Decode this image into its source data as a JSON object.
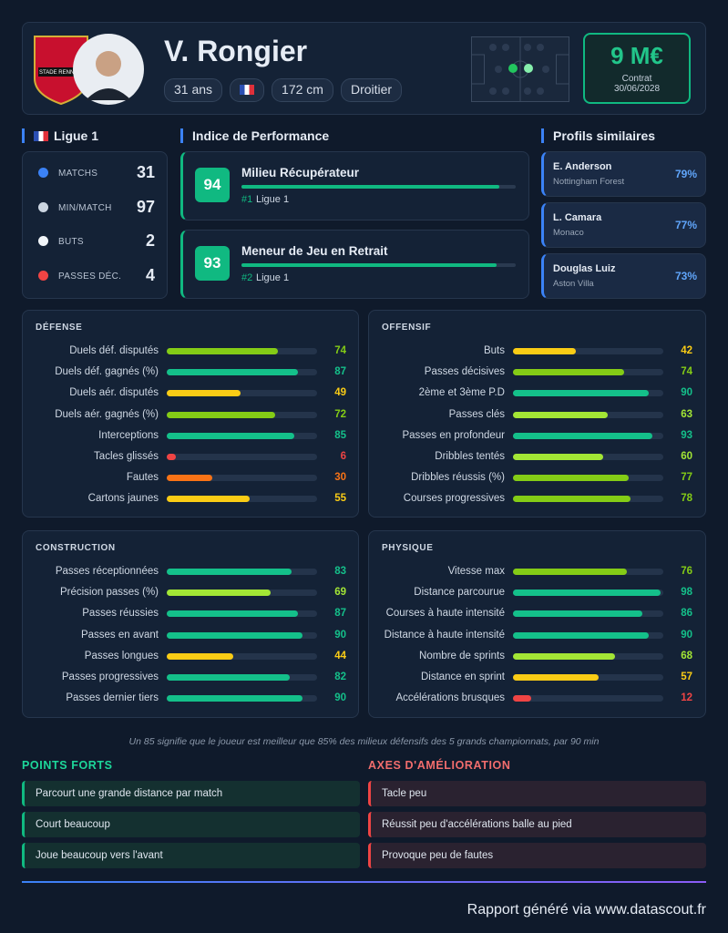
{
  "header": {
    "club": "STADE RENNAIS",
    "name": "V. Rongier",
    "tags": [
      "31 ans",
      "172 cm",
      "Droitier"
    ],
    "value": "9 M€",
    "contract_label": "Contrat",
    "contract_date": "30/06/2028"
  },
  "league": {
    "title": "Ligue 1",
    "stats": [
      {
        "label": "MATCHS",
        "value": 31
      },
      {
        "label": "MIN/MATCH",
        "value": 97
      },
      {
        "label": "BUTS",
        "value": 2
      },
      {
        "label": "PASSES DÉC.",
        "value": 4
      }
    ]
  },
  "performance": {
    "title": "Indice de Performance",
    "items": [
      {
        "score": 94,
        "role": "Milieu Récupérateur",
        "rank": "#1",
        "league": "Ligue 1"
      },
      {
        "score": 93,
        "role": "Meneur de Jeu en Retrait",
        "rank": "#2",
        "league": "Ligue 1"
      }
    ]
  },
  "similar": {
    "title": "Profils similaires",
    "items": [
      {
        "name": "E. Anderson",
        "club": "Nottingham Forest",
        "similarity": "79%"
      },
      {
        "name": "L. Camara",
        "club": "Monaco",
        "similarity": "77%"
      },
      {
        "name": "Douglas Luiz",
        "club": "Aston Villa",
        "similarity": "73%"
      }
    ]
  },
  "panels": [
    {
      "title": "DÉFENSE",
      "rows": [
        {
          "label": "Duels déf. disputés",
          "value": 74
        },
        {
          "label": "Duels déf. gagnés (%)",
          "value": 87
        },
        {
          "label": "Duels aér. disputés",
          "value": 49
        },
        {
          "label": "Duels aér. gagnés (%)",
          "value": 72
        },
        {
          "label": "Interceptions",
          "value": 85
        },
        {
          "label": "Tacles glissés",
          "value": 6
        },
        {
          "label": "Fautes",
          "value": 30
        },
        {
          "label": "Cartons jaunes",
          "value": 55
        }
      ]
    },
    {
      "title": "OFFENSIF",
      "rows": [
        {
          "label": "Buts",
          "value": 42
        },
        {
          "label": "Passes décisives",
          "value": 74
        },
        {
          "label": "2ème et 3ème P.D",
          "value": 90
        },
        {
          "label": "Passes clés",
          "value": 63
        },
        {
          "label": "Passes en profondeur",
          "value": 93
        },
        {
          "label": "Dribbles tentés",
          "value": 60
        },
        {
          "label": "Dribbles réussis (%)",
          "value": 77
        },
        {
          "label": "Courses progressives",
          "value": 78
        }
      ]
    },
    {
      "title": "CONSTRUCTION",
      "rows": [
        {
          "label": "Passes réceptionnées",
          "value": 83
        },
        {
          "label": "Précision passes (%)",
          "value": 69
        },
        {
          "label": "Passes réussies",
          "value": 87
        },
        {
          "label": "Passes en avant",
          "value": 90
        },
        {
          "label": "Passes longues",
          "value": 44
        },
        {
          "label": "Passes progressives",
          "value": 82
        },
        {
          "label": "Passes dernier tiers",
          "value": 90
        }
      ]
    },
    {
      "title": "PHYSIQUE",
      "rows": [
        {
          "label": "Vitesse max",
          "value": 76
        },
        {
          "label": "Distance parcourue",
          "value": 98
        },
        {
          "label": "Courses à haute intensité",
          "value": 86
        },
        {
          "label": "Distance à haute intensité",
          "value": 90
        },
        {
          "label": "Nombre de sprints",
          "value": 68
        },
        {
          "label": "Distance en sprint",
          "value": 57
        },
        {
          "label": "Accélérations brusques",
          "value": 12
        }
      ]
    }
  ],
  "footnote": "Un 85 signifie que le joueur est meilleur que 85% des milieux défensifs des 5 grands championnats, par 90 min",
  "strengths": {
    "title": "POINTS FORTS",
    "items": [
      "Parcourt une grande distance par match",
      "Court beaucoup",
      "Joue beaucoup vers l'avant"
    ]
  },
  "weaknesses": {
    "title": "AXES D'AMÉLIORATION",
    "items": [
      "Tacle peu",
      "Réussit peu d'accélérations balle au pied",
      "Provoque peu de fautes"
    ]
  },
  "footer": "Rapport généré via www.datascout.fr"
}
